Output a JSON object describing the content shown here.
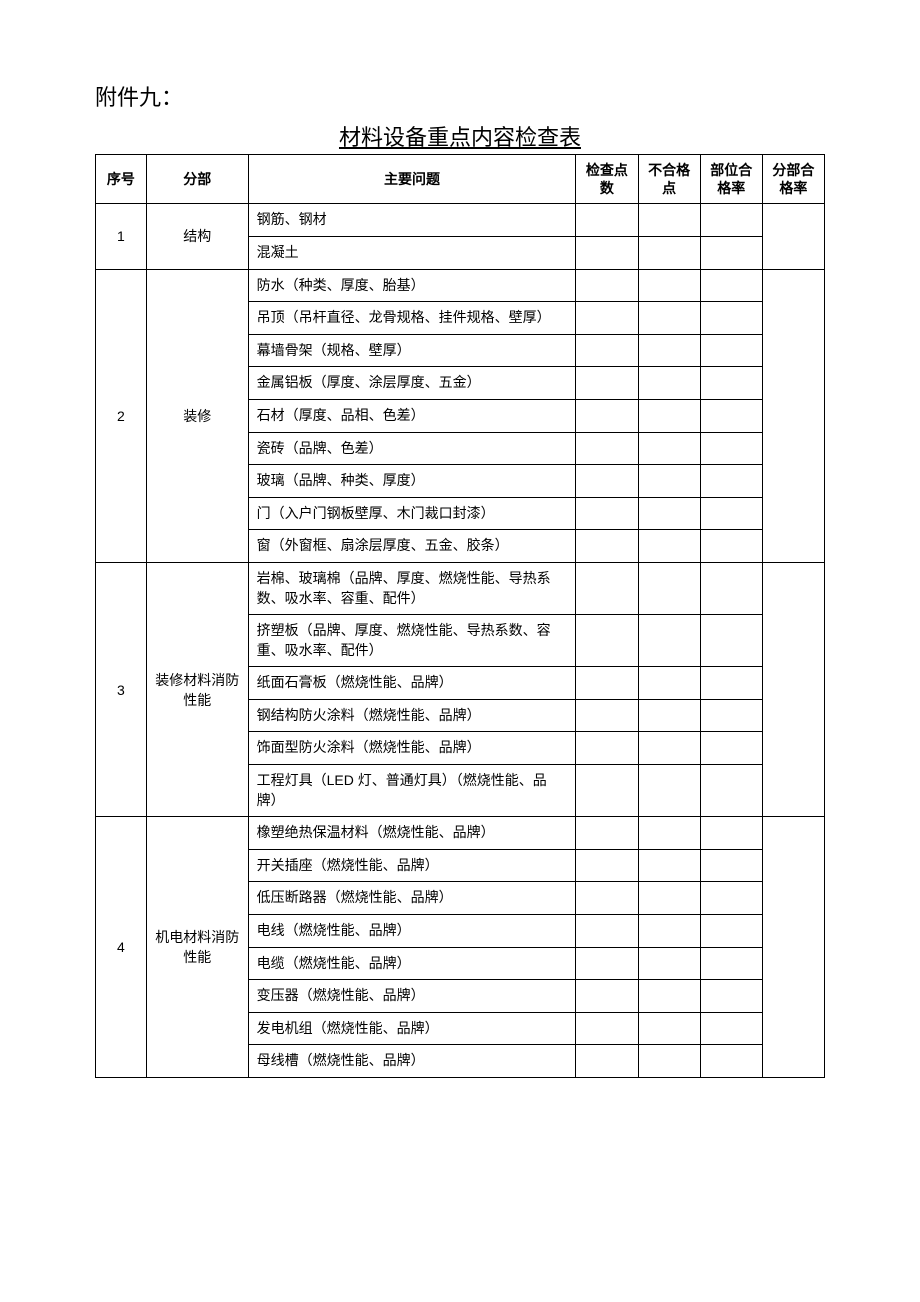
{
  "attachment_label": "附件九：",
  "title": "材料设备重点内容检查表",
  "headers": {
    "seq": "序号",
    "section": "分部",
    "issue": "主要问题",
    "check_points": "检查点数",
    "fail_points": "不合格点",
    "unit_pass_rate": "部位合格率",
    "part_pass_rate": "分部合格率"
  },
  "groups": [
    {
      "seq": "1",
      "section": "结构",
      "rows": [
        {
          "issue": "钢筋、钢材"
        },
        {
          "issue": "混凝土"
        }
      ]
    },
    {
      "seq": "2",
      "section": "装修",
      "rows": [
        {
          "issue": "防水（种类、厚度、胎基）"
        },
        {
          "issue": "吊顶（吊杆直径、龙骨规格、挂件规格、壁厚）"
        },
        {
          "issue": "幕墙骨架（规格、壁厚）"
        },
        {
          "issue": "金属铝板（厚度、涂层厚度、五金）"
        },
        {
          "issue": "石材（厚度、品相、色差）"
        },
        {
          "issue": "瓷砖（品牌、色差）"
        },
        {
          "issue": "玻璃（品牌、种类、厚度）"
        },
        {
          "issue": "门（入户门钢板壁厚、木门裁口封漆）"
        },
        {
          "issue": "窗（外窗框、扇涂层厚度、五金、胶条）"
        }
      ]
    },
    {
      "seq": "3",
      "section": "装修材料消防性能",
      "rows": [
        {
          "issue": "岩棉、玻璃棉（品牌、厚度、燃烧性能、导热系数、吸水率、容重、配件）"
        },
        {
          "issue": "挤塑板（品牌、厚度、燃烧性能、导热系数、容重、吸水率、配件）"
        },
        {
          "issue": "纸面石膏板（燃烧性能、品牌）"
        },
        {
          "issue": "钢结构防火涂料（燃烧性能、品牌）"
        },
        {
          "issue": "饰面型防火涂料（燃烧性能、品牌）"
        },
        {
          "issue": "工程灯具（LED 灯、普通灯具）（燃烧性能、品牌）"
        }
      ]
    },
    {
      "seq": "4",
      "section": "机电材料消防性能",
      "rows": [
        {
          "issue": "橡塑绝热保温材料（燃烧性能、品牌）"
        },
        {
          "issue": "开关插座（燃烧性能、品牌）"
        },
        {
          "issue": "低压断路器（燃烧性能、品牌）"
        },
        {
          "issue": "电线（燃烧性能、品牌）"
        },
        {
          "issue": "电缆（燃烧性能、品牌）"
        },
        {
          "issue": "变压器（燃烧性能、品牌）"
        },
        {
          "issue": "发电机组（燃烧性能、品牌）"
        },
        {
          "issue": "母线槽（燃烧性能、品牌）"
        }
      ]
    }
  ]
}
